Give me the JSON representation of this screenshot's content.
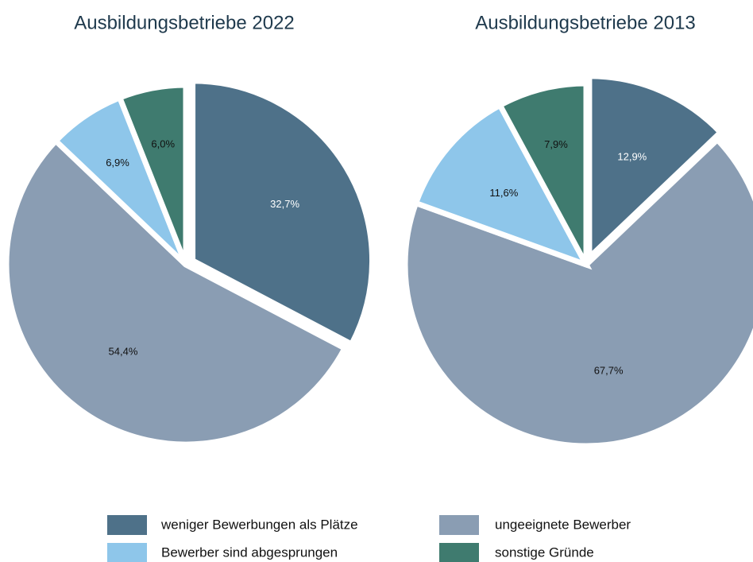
{
  "chart_data": [
    {
      "type": "pie",
      "title": "Ausbildungsbetriebe 2022",
      "categories": [
        "weniger Bewerbungen als Plätze",
        "ungeeignete Bewerber",
        "Bewerber sind abgesprungen",
        "sonstige Gründe"
      ],
      "colors": [
        "#4e7189",
        "#8a9db3",
        "#8ec6ea",
        "#3f7b6f"
      ],
      "values": [
        32.7,
        54.4,
        6.9,
        6.0
      ],
      "value_labels": [
        "32,7%",
        "54,4%",
        "6,9%",
        "6,0%"
      ]
    },
    {
      "type": "pie",
      "title": "Ausbildungsbetriebe 2013",
      "values": [
        12.9,
        67.7,
        11.6,
        7.9
      ],
      "value_labels": [
        "12,9%",
        "67,7%",
        "11,6%",
        "7,9%"
      ]
    }
  ]
}
